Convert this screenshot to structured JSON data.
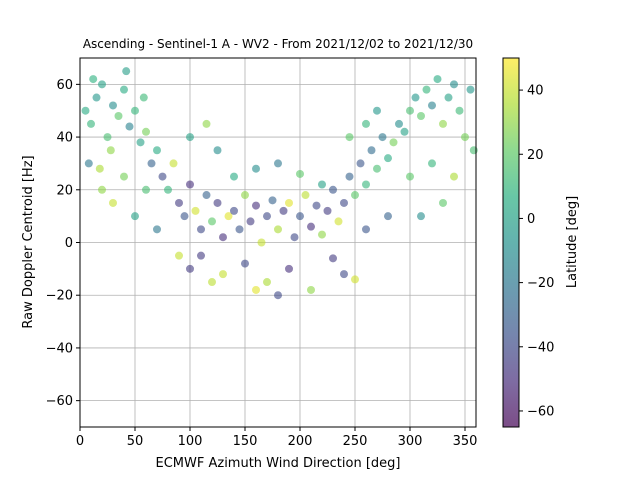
{
  "chart_data": {
    "type": "scatter",
    "title": "Ascending - Sentinel-1 A - WV2 - From 2021/12/02 to 2021/12/30",
    "xlabel": "ECMWF Azimuth Wind Direction [deg]",
    "ylabel": "Raw Doppler Centroid [Hz]",
    "xlim": [
      0,
      360
    ],
    "ylim": [
      -70,
      70
    ],
    "xticks": [
      0,
      50,
      100,
      150,
      200,
      250,
      300,
      350
    ],
    "yticks": [
      -60,
      -40,
      -20,
      0,
      20,
      40,
      60
    ],
    "grid": true,
    "colorbar": {
      "label": "Latitude [deg]",
      "range": [
        -65,
        50
      ],
      "ticks": [
        -60,
        -40,
        -20,
        0,
        20,
        40
      ],
      "colormap": "viridis"
    },
    "series": [
      {
        "points": [
          [
            5,
            50,
            5
          ],
          [
            10,
            45,
            10
          ],
          [
            15,
            55,
            -5
          ],
          [
            20,
            60,
            0
          ],
          [
            25,
            40,
            15
          ],
          [
            30,
            52,
            -10
          ],
          [
            35,
            48,
            20
          ],
          [
            40,
            58,
            5
          ],
          [
            45,
            44,
            -15
          ],
          [
            50,
            50,
            10
          ],
          [
            55,
            38,
            0
          ],
          [
            60,
            42,
            25
          ],
          [
            12,
            62,
            8
          ],
          [
            28,
            35,
            30
          ],
          [
            42,
            65,
            -2
          ],
          [
            58,
            55,
            12
          ],
          [
            8,
            30,
            -20
          ],
          [
            18,
            28,
            35
          ],
          [
            65,
            30,
            -30
          ],
          [
            70,
            35,
            5
          ],
          [
            75,
            25,
            -40
          ],
          [
            80,
            20,
            10
          ],
          [
            85,
            30,
            40
          ],
          [
            90,
            15,
            -45
          ],
          [
            95,
            10,
            -35
          ],
          [
            100,
            22,
            -50
          ],
          [
            105,
            12,
            42
          ],
          [
            110,
            5,
            -40
          ],
          [
            115,
            18,
            -30
          ],
          [
            120,
            8,
            20
          ],
          [
            125,
            15,
            -45
          ],
          [
            130,
            2,
            -50
          ],
          [
            135,
            10,
            45
          ],
          [
            140,
            12,
            -40
          ],
          [
            145,
            5,
            -35
          ],
          [
            150,
            18,
            30
          ],
          [
            155,
            8,
            -45
          ],
          [
            160,
            14,
            -50
          ],
          [
            165,
            0,
            40
          ],
          [
            170,
            10,
            -40
          ],
          [
            175,
            16,
            -30
          ],
          [
            180,
            5,
            35
          ],
          [
            185,
            12,
            -45
          ],
          [
            190,
            15,
            45
          ],
          [
            195,
            2,
            -40
          ],
          [
            200,
            10,
            -35
          ],
          [
            205,
            18,
            38
          ],
          [
            210,
            6,
            -50
          ],
          [
            215,
            14,
            -40
          ],
          [
            220,
            3,
            30
          ],
          [
            225,
            12,
            -45
          ],
          [
            230,
            20,
            -35
          ],
          [
            235,
            8,
            42
          ],
          [
            240,
            15,
            -40
          ],
          [
            245,
            25,
            -30
          ],
          [
            250,
            18,
            20
          ],
          [
            255,
            30,
            -35
          ],
          [
            260,
            22,
            10
          ],
          [
            265,
            35,
            -25
          ],
          [
            270,
            28,
            15
          ],
          [
            275,
            40,
            -20
          ],
          [
            280,
            32,
            5
          ],
          [
            285,
            38,
            25
          ],
          [
            290,
            45,
            -10
          ],
          [
            295,
            42,
            0
          ],
          [
            300,
            50,
            15
          ],
          [
            305,
            55,
            -5
          ],
          [
            310,
            48,
            20
          ],
          [
            315,
            58,
            10
          ],
          [
            320,
            52,
            -15
          ],
          [
            325,
            62,
            5
          ],
          [
            330,
            45,
            30
          ],
          [
            335,
            55,
            0
          ],
          [
            340,
            60,
            -10
          ],
          [
            345,
            50,
            12
          ],
          [
            350,
            40,
            25
          ],
          [
            355,
            58,
            -5
          ],
          [
            358,
            35,
            15
          ],
          [
            110,
            -5,
            -45
          ],
          [
            130,
            -12,
            40
          ],
          [
            150,
            -8,
            -40
          ],
          [
            170,
            -15,
            35
          ],
          [
            190,
            -10,
            -50
          ],
          [
            210,
            -18,
            30
          ],
          [
            230,
            -6,
            -45
          ],
          [
            250,
            -14,
            42
          ],
          [
            180,
            -20,
            -40
          ],
          [
            160,
            -18,
            45
          ],
          [
            90,
            -5,
            40
          ],
          [
            100,
            -10,
            -45
          ],
          [
            240,
            -12,
            -40
          ],
          [
            260,
            5,
            -35
          ],
          [
            120,
            -15,
            38
          ],
          [
            140,
            25,
            5
          ],
          [
            160,
            28,
            -10
          ],
          [
            200,
            26,
            20
          ],
          [
            220,
            22,
            0
          ],
          [
            180,
            30,
            -20
          ],
          [
            60,
            20,
            15
          ],
          [
            40,
            25,
            25
          ],
          [
            20,
            20,
            30
          ],
          [
            300,
            25,
            20
          ],
          [
            320,
            30,
            10
          ],
          [
            340,
            25,
            35
          ],
          [
            50,
            10,
            0
          ],
          [
            70,
            5,
            -20
          ],
          [
            30,
            15,
            40
          ],
          [
            310,
            10,
            -10
          ],
          [
            330,
            15,
            20
          ],
          [
            280,
            10,
            -30
          ],
          [
            100,
            40,
            0
          ],
          [
            115,
            45,
            30
          ],
          [
            125,
            35,
            -10
          ],
          [
            260,
            45,
            10
          ],
          [
            270,
            50,
            -5
          ],
          [
            245,
            40,
            20
          ]
        ]
      }
    ]
  }
}
